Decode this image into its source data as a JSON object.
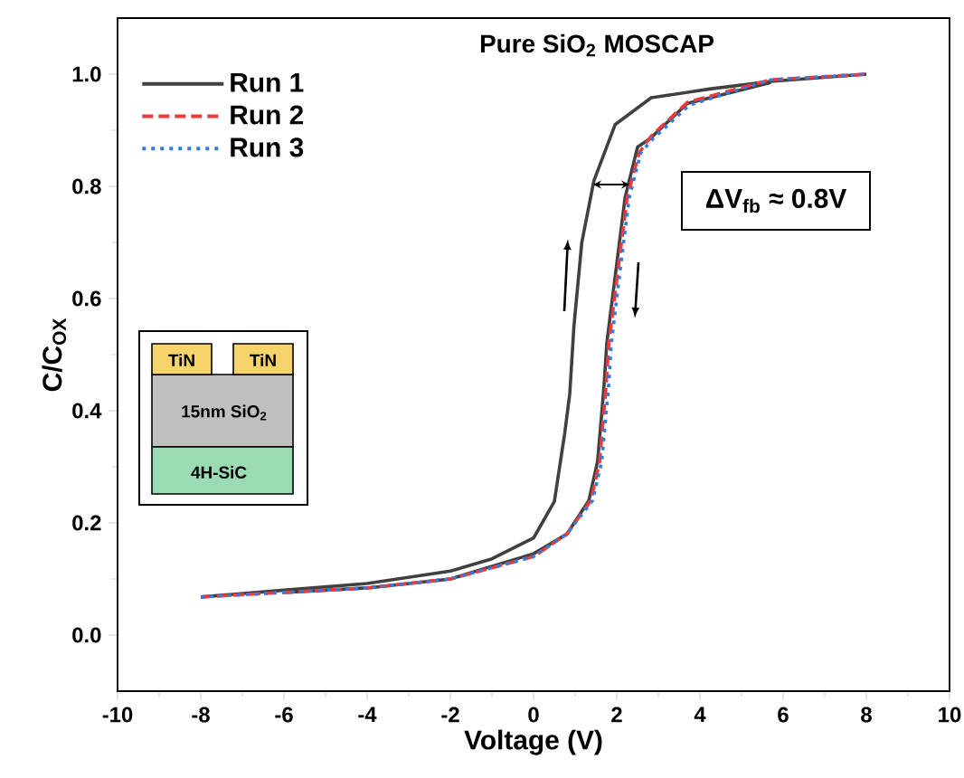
{
  "chart_data": {
    "type": "line",
    "title": "Pure SiO$_{2}$ MOSCAP",
    "xlabel": "Voltage (V)",
    "ylabel": "C/C$_{OX}$",
    "xlim": [
      -10,
      10
    ],
    "ylim": [
      -0.1,
      1.1
    ],
    "xticks": [
      -10,
      -8,
      -6,
      -4,
      -2,
      0,
      2,
      4,
      6,
      8,
      10
    ],
    "yticks": [
      {
        "value": 0,
        "label": "0.0"
      },
      {
        "value": 0.2,
        "label": "0.2"
      },
      {
        "value": 0.4,
        "label": "0.4"
      },
      {
        "value": 0.6,
        "label": "0.6"
      },
      {
        "value": 0.8,
        "label": "0.8"
      },
      {
        "value": 1,
        "label": "1.0"
      }
    ],
    "grid": false,
    "legend": "top left",
    "marker": "none",
    "annotations": [
      "ΔV$_{fb}$ ≈ 0.8V",
      "TiN",
      "TiN",
      "15nm SiO$_{2}$",
      "4H-SiC"
    ],
    "series": [
      {
        "name": "Run 1",
        "color": "#404040",
        "line_style": "solid",
        "x": [
          -8,
          -6,
          -4,
          -2,
          -1,
          0,
          0.5,
          0.75,
          0.87,
          0.97,
          1.16,
          1.45,
          1.96,
          2.83,
          4.27,
          5.7,
          8
        ],
        "values": [
          0.068,
          0.08,
          0.092,
          0.114,
          0.136,
          0.173,
          0.238,
          0.36,
          0.43,
          0.55,
          0.7,
          0.81,
          0.91,
          0.958,
          0.974,
          0.987,
          1.0
        ]
      },
      {
        "color": "#404040",
        "line_style": "solid",
        "x": [
          -6,
          -4,
          -2,
          0,
          0.8,
          1.33,
          1.54,
          1.69,
          1.76,
          1.98,
          2.2,
          2.5,
          2.8,
          3.7,
          5.7
        ],
        "values": [
          0.076,
          0.084,
          0.1,
          0.145,
          0.18,
          0.24,
          0.31,
          0.44,
          0.52,
          0.65,
          0.78,
          0.87,
          0.885,
          0.948,
          0.985
        ]
      },
      {
        "name": "Run 2",
        "color": "#f03a3a",
        "line_style": "dashed",
        "x": [
          -8,
          -6,
          -4,
          -2,
          0,
          0.8,
          1.38,
          1.59,
          1.74,
          1.81,
          2.03,
          2.25,
          2.54,
          2.83,
          3.7,
          5.7,
          8
        ],
        "values": [
          0.068,
          0.076,
          0.084,
          0.1,
          0.14,
          0.18,
          0.24,
          0.31,
          0.44,
          0.52,
          0.65,
          0.78,
          0.86,
          0.89,
          0.95,
          0.99,
          1.0
        ]
      },
      {
        "name": "Run 3",
        "color": "#2f7de1",
        "line_style": "dotted",
        "x": [
          -8,
          -6,
          -4,
          -2,
          0,
          0.8,
          1.42,
          1.64,
          1.8,
          1.87,
          2.08,
          2.3,
          2.58,
          2.87,
          3.75,
          5.7,
          8
        ],
        "values": [
          0.068,
          0.076,
          0.084,
          0.1,
          0.14,
          0.18,
          0.24,
          0.31,
          0.44,
          0.52,
          0.65,
          0.78,
          0.86,
          0.885,
          0.945,
          0.99,
          1.0
        ]
      }
    ]
  }
}
